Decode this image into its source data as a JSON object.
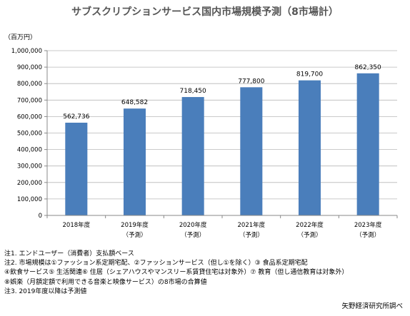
{
  "chart_data": {
    "type": "bar",
    "title": "サブスクリプションサービス国内市場規模予測（8市場計）",
    "ylabel": "（百万円）",
    "xlabel": "",
    "ylim": [
      0,
      1000000
    ],
    "y_ticks": [
      "0",
      "100,000",
      "200,000",
      "300,000",
      "400,000",
      "500,000",
      "600,000",
      "700,000",
      "800,000",
      "900,000",
      "1,000,000"
    ],
    "categories": [
      [
        "2018年度"
      ],
      [
        "2019年度",
        "（予測）"
      ],
      [
        "2020年度",
        "（予測）"
      ],
      [
        "2021年度",
        "（予測）"
      ],
      [
        "2022年度",
        "（予測）"
      ],
      [
        "2023年度",
        "（予測）"
      ]
    ],
    "values": [
      562736,
      648582,
      718450,
      777800,
      819700,
      862350
    ],
    "value_labels": [
      "562,736",
      "648,582",
      "718,450",
      "777,800",
      "819,700",
      "862,350"
    ],
    "bar_color": "#4a7ebb",
    "grid": true,
    "legend": "none"
  },
  "notes": [
    "注1. エンドユーザー（消費者）支払額ベース",
    "注2. 市場規模は①ファッション系定期宅配、②ファッションサービス（但し①を除く）③ 食品系定期宅配",
    "④飲食サービス⑤ 生活関連⑥ 住居（シェアハウスやマンスリー系賃貸住宅は対象外）⑦ 教育（但し通信教育は対象外）",
    "⑧娯楽（月額定額で利用できる音楽と映像サービス）の8市場の合算値",
    "注3. 2019年度以降は予測値"
  ],
  "source": "矢野経済研究所調べ"
}
